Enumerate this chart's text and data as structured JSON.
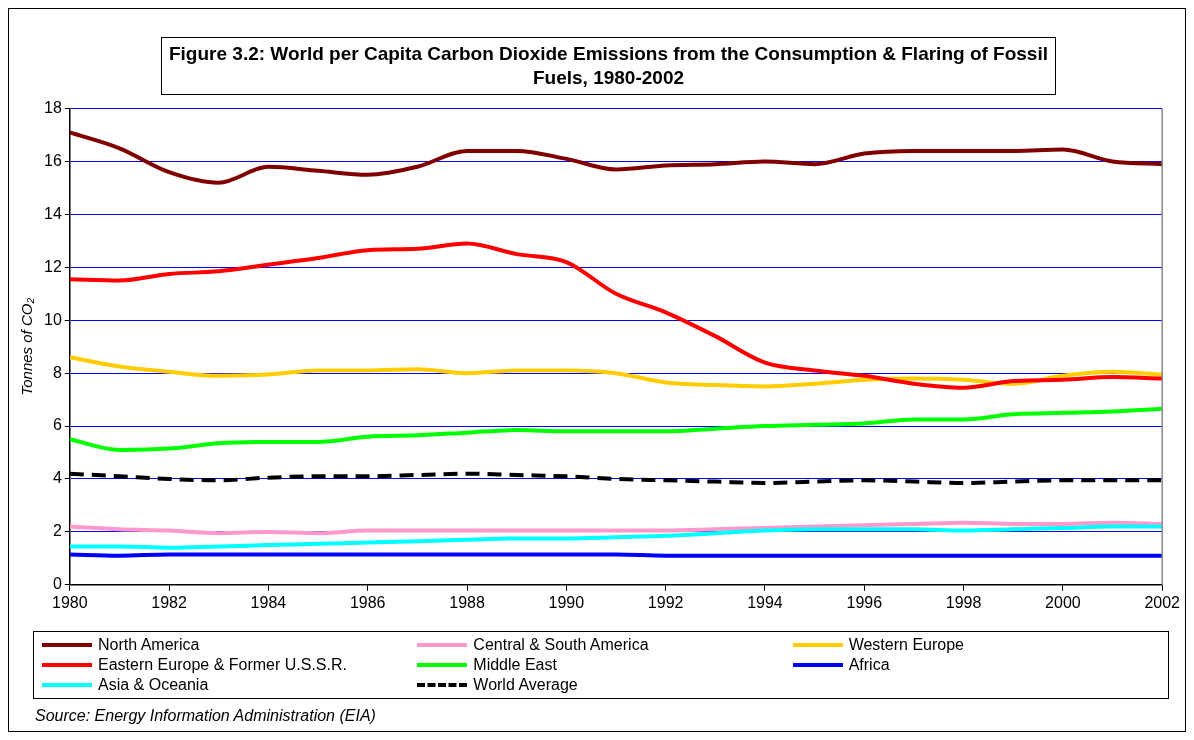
{
  "chart_data": {
    "type": "line",
    "title": "Figure 3.2: World per Capita Carbon Dioxide Emissions from the Consumption & Flaring of Fossil Fuels, 1980-2002",
    "ylabel": "Tonnes of CO₂",
    "x": [
      1980,
      1981,
      1982,
      1983,
      1984,
      1985,
      1986,
      1987,
      1988,
      1989,
      1990,
      1991,
      1992,
      1993,
      1994,
      1995,
      1996,
      1997,
      1998,
      1999,
      2000,
      2001,
      2002
    ],
    "series": [
      {
        "name": "North America",
        "color": "#800000",
        "values": [
          17.1,
          16.5,
          15.6,
          15.2,
          15.8,
          15.65,
          15.5,
          15.8,
          16.4,
          16.4,
          16.1,
          15.7,
          15.85,
          15.9,
          16.0,
          15.9,
          16.3,
          16.4,
          16.4,
          16.4,
          16.45,
          16.0,
          15.9
        ]
      },
      {
        "name": "Central & South America",
        "color": "#ff99cc",
        "values": [
          2.2,
          2.1,
          2.05,
          1.95,
          2.0,
          1.95,
          2.05,
          2.05,
          2.05,
          2.05,
          2.05,
          2.05,
          2.05,
          2.1,
          2.15,
          2.2,
          2.25,
          2.3,
          2.35,
          2.3,
          2.3,
          2.35,
          2.3
        ]
      },
      {
        "name": "Western Europe",
        "color": "#ffcc00",
        "values": [
          8.6,
          8.25,
          8.05,
          7.9,
          7.95,
          8.1,
          8.1,
          8.15,
          8.0,
          8.1,
          8.1,
          8.0,
          7.65,
          7.55,
          7.5,
          7.6,
          7.75,
          7.8,
          7.75,
          7.6,
          7.9,
          8.05,
          7.95
        ]
      },
      {
        "name": "Eastern Europe & Former U.S.S.R.",
        "color": "#ff0000",
        "values": [
          11.55,
          11.5,
          11.75,
          11.85,
          12.1,
          12.35,
          12.65,
          12.7,
          12.9,
          12.5,
          12.2,
          11.0,
          10.3,
          9.4,
          8.4,
          8.1,
          7.9,
          7.6,
          7.45,
          7.7,
          7.75,
          7.85,
          7.8
        ]
      },
      {
        "name": "Middle East",
        "color": "#00ff00",
        "values": [
          5.5,
          5.1,
          5.15,
          5.35,
          5.4,
          5.4,
          5.6,
          5.65,
          5.75,
          5.85,
          5.8,
          5.8,
          5.8,
          5.9,
          6.0,
          6.05,
          6.1,
          6.25,
          6.25,
          6.45,
          6.5,
          6.55,
          6.65
        ]
      },
      {
        "name": "Africa",
        "color": "#0000ff",
        "values": [
          1.15,
          1.1,
          1.15,
          1.15,
          1.15,
          1.15,
          1.15,
          1.15,
          1.15,
          1.15,
          1.15,
          1.15,
          1.1,
          1.1,
          1.1,
          1.1,
          1.1,
          1.1,
          1.1,
          1.1,
          1.1,
          1.1,
          1.1
        ]
      },
      {
        "name": "Asia & Oceania",
        "color": "#00ffff",
        "values": [
          1.45,
          1.45,
          1.4,
          1.45,
          1.5,
          1.55,
          1.6,
          1.65,
          1.7,
          1.75,
          1.75,
          1.8,
          1.85,
          1.95,
          2.05,
          2.1,
          2.1,
          2.1,
          2.05,
          2.1,
          2.15,
          2.2,
          2.2
        ]
      },
      {
        "name": "World Average",
        "color": "#000000",
        "line_style": "dashed",
        "values": [
          4.2,
          4.1,
          4.0,
          3.95,
          4.05,
          4.1,
          4.1,
          4.15,
          4.2,
          4.15,
          4.1,
          4.0,
          3.95,
          3.9,
          3.85,
          3.9,
          3.95,
          3.9,
          3.85,
          3.9,
          3.95,
          3.95,
          3.95
        ]
      }
    ],
    "xlim": [
      1980,
      2002
    ],
    "xticks": [
      1980,
      1982,
      1984,
      1986,
      1988,
      1990,
      1992,
      1994,
      1996,
      1998,
      2000,
      2002
    ],
    "ylim": [
      0,
      18
    ],
    "yticks": [
      0,
      2,
      4,
      6,
      8,
      10,
      12,
      14,
      16,
      18
    ],
    "grid": "y",
    "legend": "bottom",
    "marker": "none",
    "line_style": "solid",
    "annotations": [
      "Source: Energy Information Administration (EIA)"
    ]
  }
}
